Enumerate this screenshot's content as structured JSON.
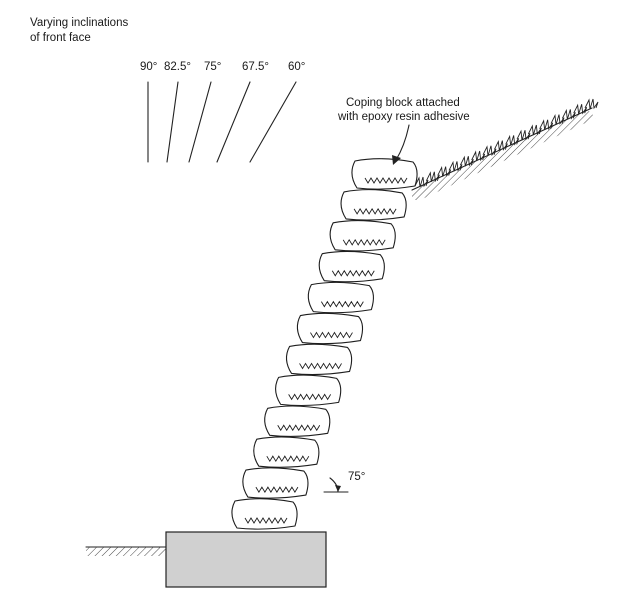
{
  "title": {
    "line1": "Varying inclinations",
    "line2": "of front face"
  },
  "inclinations": [
    {
      "label": "90°",
      "angle_deg": 90
    },
    {
      "label": "82.5°",
      "angle_deg": 82.5
    },
    {
      "label": "75°",
      "angle_deg": 75
    },
    {
      "label": "67.5°",
      "angle_deg": 67.5
    },
    {
      "label": "60°",
      "angle_deg": 60
    }
  ],
  "coping_note": {
    "line1": "Coping block attached",
    "line2": "with epoxy resin adhesive"
  },
  "wall_angle": {
    "label": "75°",
    "angle_deg": 75
  },
  "block_count": 12
}
